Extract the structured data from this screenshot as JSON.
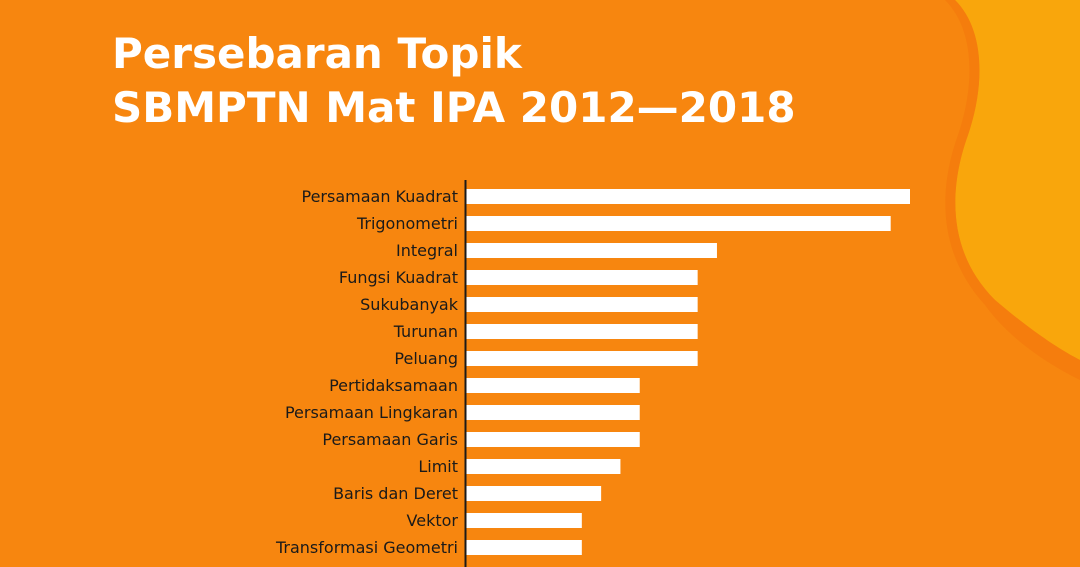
{
  "title": {
    "line1": "Persebaran Topik",
    "line2": "SBMPTN Mat IPA 2012—2018"
  },
  "colors": {
    "background": "#f7860f",
    "accent_blob": "#f9a60c",
    "bar": "#ffffff",
    "axis": "#1a1a1a",
    "label": "#1a1a1a"
  },
  "chart_data": {
    "type": "bar",
    "orientation": "horizontal",
    "title": "Persebaran Topik SBMPTN Mat IPA 2012—2018",
    "xlabel": "",
    "ylabel": "",
    "grid": false,
    "legend": "none",
    "xlim": [
      0,
      23
    ],
    "categories": [
      "Persamaan Kuadrat",
      "Trigonometri",
      "Integral",
      "Fungsi Kuadrat",
      "Sukubanyak",
      "Turunan",
      "Peluang",
      "Pertidaksamaan",
      "Persamaan Lingkaran",
      "Persamaan Garis",
      "Limit",
      "Baris dan Deret",
      "Vektor",
      "Transformasi Geometri"
    ],
    "values": [
      23,
      22,
      13,
      12,
      12,
      12,
      12,
      9,
      9,
      9,
      8,
      7,
      6,
      6
    ]
  }
}
